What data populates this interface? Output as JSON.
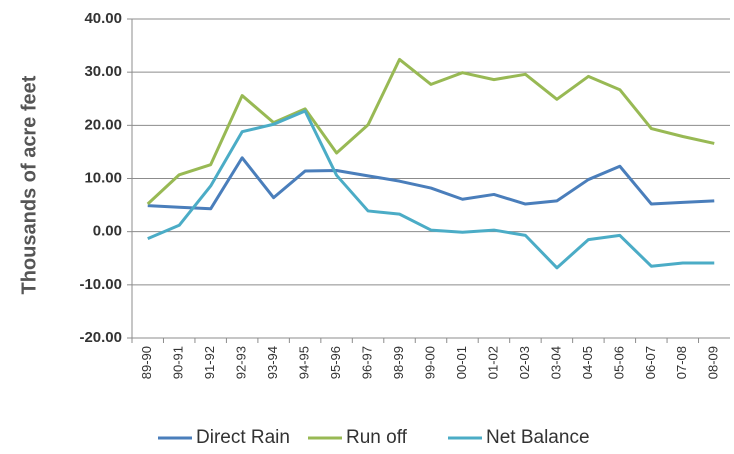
{
  "chart_data": {
    "type": "line",
    "y_label": "Thousands of acre feet",
    "categories": [
      "89-90",
      "90-91",
      "91-92",
      "92-93",
      "93-94",
      "94-95",
      "95-96",
      "96-97",
      "98-99",
      "99-00",
      "00-01",
      "01-02",
      "02-03",
      "03-04",
      "04-05",
      "05-06",
      "06-07",
      "07-08",
      "08-09"
    ],
    "series": [
      {
        "name": "Direct Rain",
        "color": "#4a7ebb",
        "values": [
          4.9,
          4.6,
          4.3,
          13.9,
          6.4,
          11.4,
          11.5,
          10.5,
          9.5,
          8.2,
          6.1,
          7.0,
          5.2,
          5.8,
          9.8,
          12.3,
          5.2,
          5.5,
          5.8
        ]
      },
      {
        "name": "Run off",
        "color": "#98b954",
        "values": [
          5.2,
          10.7,
          12.6,
          25.6,
          20.5,
          23.1,
          14.8,
          20.1,
          32.4,
          27.7,
          29.9,
          28.6,
          29.6,
          24.9,
          29.2,
          26.7,
          19.4,
          17.9,
          16.6
        ]
      },
      {
        "name": "Net Balance",
        "color": "#4bacc6",
        "values": [
          -1.3,
          1.2,
          8.6,
          18.8,
          20.2,
          22.7,
          10.6,
          3.9,
          3.3,
          0.3,
          -0.1,
          0.3,
          -0.7,
          -6.8,
          -1.5,
          -0.7,
          -6.5,
          -5.9,
          -5.9
        ]
      }
    ],
    "ylim": [
      -20,
      40
    ],
    "yticks": [
      {
        "value": -20,
        "label": "-20.00"
      },
      {
        "value": -10,
        "label": "-10.00"
      },
      {
        "value": 0,
        "label": "0.00"
      },
      {
        "value": 10,
        "label": "10.00"
      },
      {
        "value": 20,
        "label": "20.00"
      },
      {
        "value": 30,
        "label": "30.00"
      },
      {
        "value": 40,
        "label": "40.00"
      }
    ],
    "grid": true
  }
}
